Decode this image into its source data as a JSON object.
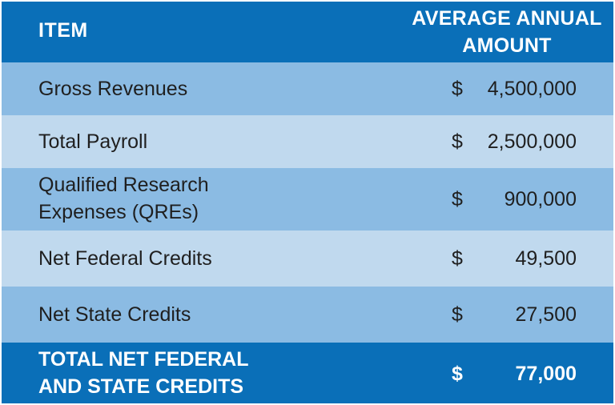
{
  "header": {
    "item_label": "ITEM",
    "amount_line1": "AVERAGE ANNUAL",
    "amount_line2": "AMOUNT"
  },
  "rows": [
    {
      "item": "Gross Revenues",
      "currency": "$",
      "value": "4,500,000"
    },
    {
      "item": "Total Payroll",
      "currency": "$",
      "value": "2,500,000"
    },
    {
      "item_line1": "Qualified Research",
      "item_line2": "Expenses (QREs)",
      "currency": "$",
      "value": "900,000"
    },
    {
      "item": "Net Federal Credits",
      "currency": "$",
      "value": "49,500"
    },
    {
      "item": "Net State Credits",
      "currency": "$",
      "value": "27,500"
    }
  ],
  "total": {
    "item_line1": "TOTAL NET FEDERAL",
    "item_line2": "AND STATE CREDITS",
    "currency": "$",
    "value": "77,000"
  },
  "colors": {
    "header_bg": "#0a6fb8",
    "dark_row_bg": "#8bbbe3",
    "light_row_bg": "#c0d9ee",
    "total_bg": "#0a6fb8"
  }
}
